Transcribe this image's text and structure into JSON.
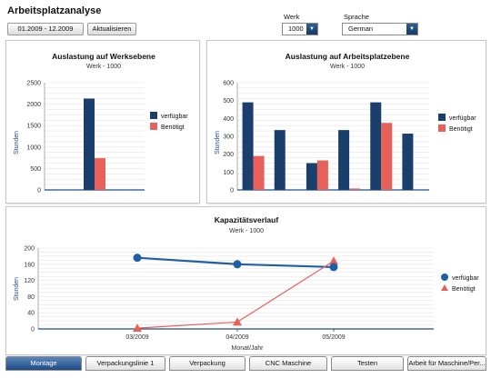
{
  "app": {
    "title": "Arbeitsplatzanalyse"
  },
  "toolbar": {
    "date_range": "01.2009 - 12.2009",
    "refresh_label": "Aktualisieren"
  },
  "filters": {
    "werk": {
      "label": "Werk",
      "value": "1000"
    },
    "sprache": {
      "label": "Sprache",
      "value": "German"
    }
  },
  "colors": {
    "available": "#1a3f6b",
    "required": "#e8605a",
    "line_available": "#1f5fa8",
    "line_required": "#e8605a"
  },
  "charts": {
    "werk": {
      "title": "Auslastung auf Werksebene",
      "subtitle": "Werk - 1000",
      "ylabel": "Stunden",
      "ylim": [
        0,
        2500
      ],
      "yticks": [
        "0",
        "500",
        "1000",
        "1500",
        "2000",
        "2500"
      ],
      "series": [
        {
          "name": "verfügbar",
          "values": [
            2130
          ]
        },
        {
          "name": "Benötigt",
          "values": [
            740
          ]
        }
      ]
    },
    "arbeitsplatz": {
      "title": "Auslastung auf Arbeitsplatzebene",
      "subtitle": "Werk - 1000",
      "ylabel": "Stunden",
      "ylim": [
        0,
        600
      ],
      "yticks": [
        "0",
        "100",
        "200",
        "300",
        "400",
        "500",
        "600"
      ],
      "series": [
        {
          "name": "verfügbar",
          "values": [
            490,
            335,
            150,
            335,
            490,
            315
          ]
        },
        {
          "name": "Benötigt",
          "values": [
            190,
            0,
            165,
            8,
            375,
            0
          ]
        }
      ]
    },
    "kapazitaet": {
      "title": "Kapazitätsverlauf",
      "subtitle": "Werk - 1000",
      "ylabel": "Stunden",
      "xlabel": "Monat/Jahr",
      "ylim": [
        0,
        200
      ],
      "yticks": [
        "0",
        "40",
        "80",
        "120",
        "160",
        "200"
      ],
      "categories": [
        "03/2009",
        "04/2009",
        "05/2009"
      ],
      "series": [
        {
          "name": "verfügbar",
          "values": [
            176,
            160,
            153
          ]
        },
        {
          "name": "Benötigt",
          "values": [
            2,
            17,
            168
          ]
        }
      ]
    }
  },
  "chart_data": [
    {
      "type": "bar",
      "title": "Auslastung auf Werksebene",
      "subtitle": "Werk - 1000",
      "ylabel": "Stunden",
      "ylim": [
        0,
        2500
      ],
      "series": [
        {
          "name": "verfügbar",
          "values": [
            2130
          ]
        },
        {
          "name": "Benötigt",
          "values": [
            740
          ]
        }
      ],
      "legend": "right",
      "grid": true
    },
    {
      "type": "bar",
      "title": "Auslastung auf Arbeitsplatzebene",
      "subtitle": "Werk - 1000",
      "ylabel": "Stunden",
      "ylim": [
        0,
        600
      ],
      "series": [
        {
          "name": "verfügbar",
          "values": [
            490,
            335,
            150,
            335,
            490,
            315
          ]
        },
        {
          "name": "Benötigt",
          "values": [
            190,
            0,
            165,
            8,
            375,
            0
          ]
        }
      ],
      "legend": "right",
      "grid": true
    },
    {
      "type": "line",
      "title": "Kapazitätsverlauf",
      "subtitle": "Werk - 1000",
      "xlabel": "Monat/Jahr",
      "ylabel": "Stunden",
      "categories": [
        "03/2009",
        "04/2009",
        "05/2009"
      ],
      "ylim": [
        0,
        200
      ],
      "series": [
        {
          "name": "verfügbar",
          "values": [
            176,
            160,
            153
          ]
        },
        {
          "name": "Benötigt",
          "values": [
            2,
            17,
            168
          ]
        }
      ],
      "legend": "right",
      "grid": true
    }
  ],
  "tabs": [
    {
      "label": "Montage",
      "active": true
    },
    {
      "label": "Verpackungslinie 1",
      "active": false
    },
    {
      "label": "Verpackung",
      "active": false
    },
    {
      "label": "CNC Maschine",
      "active": false
    },
    {
      "label": "Testen",
      "active": false
    },
    {
      "label": "Arbeit für Maschine/Per...",
      "active": false
    }
  ]
}
